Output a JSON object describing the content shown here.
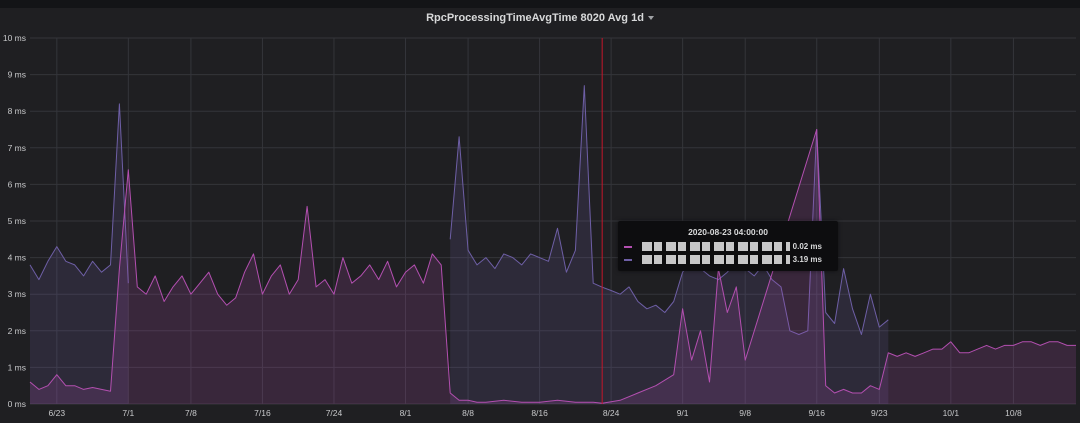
{
  "panel": {
    "title": "RpcProcessingTimeAvgTime 8020 Avg 1d",
    "caret_icon": "chevron-down-icon"
  },
  "tooltip": {
    "time": "2020-08-23 04:00:00",
    "rows": [
      {
        "value": "0.02 ms",
        "color": "#b34fb0"
      },
      {
        "value": "3.19 ms",
        "color": "#6e5fa6"
      }
    ]
  },
  "chart_data": {
    "type": "area",
    "x_start": "2020-06-20",
    "x_end": "2020-10-15",
    "ylim": [
      0,
      10
    ],
    "y_ticks": [
      "0 ms",
      "1 ms",
      "2 ms",
      "3 ms",
      "4 ms",
      "5 ms",
      "6 ms",
      "7 ms",
      "8 ms",
      "9 ms",
      "10 ms"
    ],
    "x_ticks": [
      {
        "label": "6/23",
        "date": "2020-06-23"
      },
      {
        "label": "7/1",
        "date": "2020-07-01"
      },
      {
        "label": "7/8",
        "date": "2020-07-08"
      },
      {
        "label": "7/16",
        "date": "2020-07-16"
      },
      {
        "label": "7/24",
        "date": "2020-07-24"
      },
      {
        "label": "8/1",
        "date": "2020-08-01"
      },
      {
        "label": "8/8",
        "date": "2020-08-08"
      },
      {
        "label": "8/16",
        "date": "2020-08-16"
      },
      {
        "label": "8/24",
        "date": "2020-08-24"
      },
      {
        "label": "9/1",
        "date": "2020-09-01"
      },
      {
        "label": "9/8",
        "date": "2020-09-08"
      },
      {
        "label": "9/16",
        "date": "2020-09-16"
      },
      {
        "label": "9/23",
        "date": "2020-09-23"
      },
      {
        "label": "10/1",
        "date": "2020-10-01"
      },
      {
        "label": "10/8",
        "date": "2020-10-08"
      }
    ],
    "crosshair_date": "2020-08-23",
    "grid": true,
    "series": [
      {
        "color": "#6e5fa6",
        "points": [
          [
            "2020-06-20",
            3.8
          ],
          [
            "2020-06-21",
            3.4
          ],
          [
            "2020-06-22",
            3.9
          ],
          [
            "2020-06-23",
            4.3
          ],
          [
            "2020-06-24",
            3.9
          ],
          [
            "2020-06-25",
            3.8
          ],
          [
            "2020-06-26",
            3.5
          ],
          [
            "2020-06-27",
            3.9
          ],
          [
            "2020-06-28",
            3.6
          ],
          [
            "2020-06-29",
            3.8
          ],
          [
            "2020-06-30",
            8.2
          ],
          [
            "2020-07-01",
            3.3
          ]
        ]
      },
      {
        "color": "#6e5fa6",
        "points": [
          [
            "2020-08-06",
            4.5
          ],
          [
            "2020-08-07",
            7.3
          ],
          [
            "2020-08-08",
            4.2
          ],
          [
            "2020-08-09",
            3.8
          ],
          [
            "2020-08-10",
            4.0
          ],
          [
            "2020-08-11",
            3.7
          ],
          [
            "2020-08-12",
            4.1
          ],
          [
            "2020-08-13",
            4.0
          ],
          [
            "2020-08-14",
            3.8
          ],
          [
            "2020-08-15",
            4.1
          ],
          [
            "2020-08-17",
            3.9
          ],
          [
            "2020-08-18",
            4.8
          ],
          [
            "2020-08-19",
            3.6
          ],
          [
            "2020-08-20",
            4.2
          ],
          [
            "2020-08-21",
            8.7
          ],
          [
            "2020-08-22",
            3.3
          ],
          [
            "2020-08-23",
            3.19
          ],
          [
            "2020-08-24",
            3.1
          ],
          [
            "2020-08-25",
            3.0
          ],
          [
            "2020-08-26",
            3.2
          ],
          [
            "2020-08-27",
            2.8
          ],
          [
            "2020-08-28",
            2.6
          ],
          [
            "2020-08-29",
            2.7
          ],
          [
            "2020-08-30",
            2.5
          ],
          [
            "2020-08-31",
            2.8
          ],
          [
            "2020-09-01",
            3.6
          ],
          [
            "2020-09-02",
            3.9
          ],
          [
            "2020-09-03",
            3.7
          ],
          [
            "2020-09-04",
            3.5
          ],
          [
            "2020-09-05",
            3.4
          ],
          [
            "2020-09-06",
            3.6
          ],
          [
            "2020-09-07",
            3.9
          ],
          [
            "2020-09-08",
            3.7
          ],
          [
            "2020-09-09",
            3.5
          ],
          [
            "2020-09-10",
            3.8
          ],
          [
            "2020-09-11",
            3.4
          ],
          [
            "2020-09-12",
            3.2
          ],
          [
            "2020-09-13",
            2.0
          ],
          [
            "2020-09-14",
            1.9
          ],
          [
            "2020-09-15",
            2.0
          ],
          [
            "2020-09-16",
            7.5
          ],
          [
            "2020-09-17",
            2.5
          ],
          [
            "2020-09-18",
            2.2
          ],
          [
            "2020-09-19",
            3.7
          ],
          [
            "2020-09-20",
            2.6
          ],
          [
            "2020-09-21",
            1.9
          ],
          [
            "2020-09-22",
            3.0
          ],
          [
            "2020-09-23",
            2.1
          ],
          [
            "2020-09-24",
            2.3
          ]
        ]
      },
      {
        "color": "#b34fb0",
        "points": [
          [
            "2020-06-20",
            0.6
          ],
          [
            "2020-06-21",
            0.4
          ],
          [
            "2020-06-22",
            0.5
          ],
          [
            "2020-06-23",
            0.8
          ],
          [
            "2020-06-24",
            0.5
          ],
          [
            "2020-06-25",
            0.5
          ],
          [
            "2020-06-26",
            0.4
          ],
          [
            "2020-06-27",
            0.45
          ],
          [
            "2020-06-28",
            0.4
          ],
          [
            "2020-06-29",
            0.35
          ],
          [
            "2020-06-30",
            3.7
          ],
          [
            "2020-07-01",
            6.4
          ],
          [
            "2020-07-02",
            3.2
          ],
          [
            "2020-07-03",
            3.0
          ],
          [
            "2020-07-04",
            3.5
          ],
          [
            "2020-07-05",
            2.8
          ],
          [
            "2020-07-06",
            3.2
          ],
          [
            "2020-07-07",
            3.5
          ],
          [
            "2020-07-08",
            3.0
          ],
          [
            "2020-07-09",
            3.3
          ],
          [
            "2020-07-10",
            3.6
          ],
          [
            "2020-07-11",
            3.0
          ],
          [
            "2020-07-12",
            2.7
          ],
          [
            "2020-07-13",
            2.9
          ],
          [
            "2020-07-14",
            3.6
          ],
          [
            "2020-07-15",
            4.1
          ],
          [
            "2020-07-16",
            3.0
          ],
          [
            "2020-07-17",
            3.5
          ],
          [
            "2020-07-18",
            3.8
          ],
          [
            "2020-07-19",
            3.0
          ],
          [
            "2020-07-20",
            3.4
          ],
          [
            "2020-07-21",
            5.4
          ],
          [
            "2020-07-22",
            3.2
          ],
          [
            "2020-07-23",
            3.4
          ],
          [
            "2020-07-24",
            3.0
          ],
          [
            "2020-07-25",
            4.0
          ],
          [
            "2020-07-26",
            3.3
          ],
          [
            "2020-07-27",
            3.5
          ],
          [
            "2020-07-28",
            3.8
          ],
          [
            "2020-07-29",
            3.4
          ],
          [
            "2020-07-30",
            3.9
          ],
          [
            "2020-07-31",
            3.2
          ],
          [
            "2020-08-01",
            3.6
          ],
          [
            "2020-08-02",
            3.8
          ],
          [
            "2020-08-03",
            3.3
          ],
          [
            "2020-08-04",
            4.1
          ],
          [
            "2020-08-05",
            3.8
          ],
          [
            "2020-08-06",
            0.3
          ],
          [
            "2020-08-07",
            0.1
          ],
          [
            "2020-08-08",
            0.1
          ],
          [
            "2020-08-09",
            0.05
          ],
          [
            "2020-08-10",
            0.05
          ],
          [
            "2020-08-12",
            0.1
          ],
          [
            "2020-08-14",
            0.05
          ],
          [
            "2020-08-16",
            0.05
          ],
          [
            "2020-08-18",
            0.1
          ],
          [
            "2020-08-20",
            0.05
          ],
          [
            "2020-08-22",
            0.05
          ],
          [
            "2020-08-23",
            0.02
          ],
          [
            "2020-08-25",
            0.1
          ],
          [
            "2020-08-27",
            0.3
          ],
          [
            "2020-08-29",
            0.5
          ],
          [
            "2020-08-31",
            0.8
          ],
          [
            "2020-09-01",
            2.6
          ],
          [
            "2020-09-02",
            1.2
          ],
          [
            "2020-09-03",
            2.0
          ],
          [
            "2020-09-04",
            0.6
          ],
          [
            "2020-09-05",
            3.7
          ],
          [
            "2020-09-06",
            2.5
          ],
          [
            "2020-09-07",
            3.2
          ],
          [
            "2020-09-08",
            1.2
          ],
          [
            "2020-09-16",
            7.5
          ],
          [
            "2020-09-17",
            0.5
          ],
          [
            "2020-09-18",
            0.3
          ],
          [
            "2020-09-19",
            0.4
          ],
          [
            "2020-09-20",
            0.3
          ],
          [
            "2020-09-21",
            0.3
          ],
          [
            "2020-09-22",
            0.5
          ],
          [
            "2020-09-23",
            0.4
          ],
          [
            "2020-09-24",
            1.4
          ],
          [
            "2020-09-25",
            1.3
          ],
          [
            "2020-09-26",
            1.4
          ],
          [
            "2020-09-27",
            1.3
          ],
          [
            "2020-09-28",
            1.4
          ],
          [
            "2020-09-29",
            1.5
          ],
          [
            "2020-09-30",
            1.5
          ],
          [
            "2020-10-01",
            1.7
          ],
          [
            "2020-10-02",
            1.4
          ],
          [
            "2020-10-03",
            1.4
          ],
          [
            "2020-10-04",
            1.5
          ],
          [
            "2020-10-05",
            1.6
          ],
          [
            "2020-10-06",
            1.5
          ],
          [
            "2020-10-07",
            1.6
          ],
          [
            "2020-10-08",
            1.6
          ],
          [
            "2020-10-09",
            1.7
          ],
          [
            "2020-10-10",
            1.7
          ],
          [
            "2020-10-11",
            1.6
          ],
          [
            "2020-10-12",
            1.7
          ],
          [
            "2020-10-13",
            1.7
          ],
          [
            "2020-10-14",
            1.6
          ],
          [
            "2020-10-15",
            1.6
          ]
        ]
      }
    ]
  }
}
